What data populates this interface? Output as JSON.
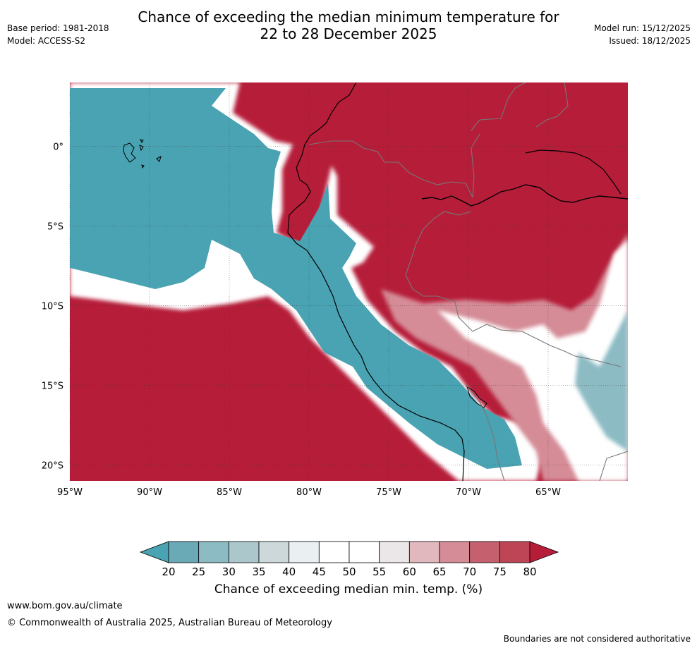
{
  "header": {
    "title_line1": "Chance of exceeding the median minimum temperature for",
    "title_line2": "22 to 28 December 2025",
    "base_period": "Base period: 1981-2018",
    "model": "Model: ACCESS-S2",
    "model_run": "Model run: 15/12/2025",
    "issued": "Issued: 18/12/2025"
  },
  "map": {
    "lon_labels": [
      "95°W",
      "90°W",
      "85°W",
      "80°W",
      "75°W",
      "70°W",
      "65°W"
    ],
    "lat_labels": [
      "0°",
      "5°S",
      "10°S",
      "15°S",
      "20°S"
    ],
    "colors": {
      "c20": "#4aa3b3",
      "c25": "#6aaab6",
      "c30": "#8cbbc4",
      "c35": "#acc7cc",
      "c40": "#cdd8da",
      "c45": "#eaeff1",
      "c50": "#ffffff",
      "c55": "#ffffff",
      "c60": "#ebe7e8",
      "c65": "#e2b8bf",
      "c70": "#d58c97",
      "c75": "#c5616f",
      "c80": "#b61d39",
      "land_line": "#000000",
      "border_line": "#777777"
    }
  },
  "colorbar": {
    "ticks": [
      "20",
      "25",
      "30",
      "35",
      "40",
      "45",
      "50",
      "55",
      "60",
      "65",
      "70",
      "75",
      "80"
    ],
    "colors": [
      "#6aaab6",
      "#8cbbc4",
      "#acc7cc",
      "#cdd8da",
      "#eaeff1",
      "#ffffff",
      "#ffffff",
      "#ebe7e8",
      "#e2b8bf",
      "#d58c97",
      "#c5616f",
      "#be4555"
    ],
    "low_color": "#4aa3b3",
    "high_color": "#b61d39",
    "label": "Chance of exceeding median min. temp. (%)"
  },
  "footer": {
    "website": "www.bom.gov.au/climate",
    "copyright": "© Commonwealth of Australia 2025, Australian Bureau of Meteorology",
    "disclaimer": "Boundaries are not considered authoritative"
  }
}
